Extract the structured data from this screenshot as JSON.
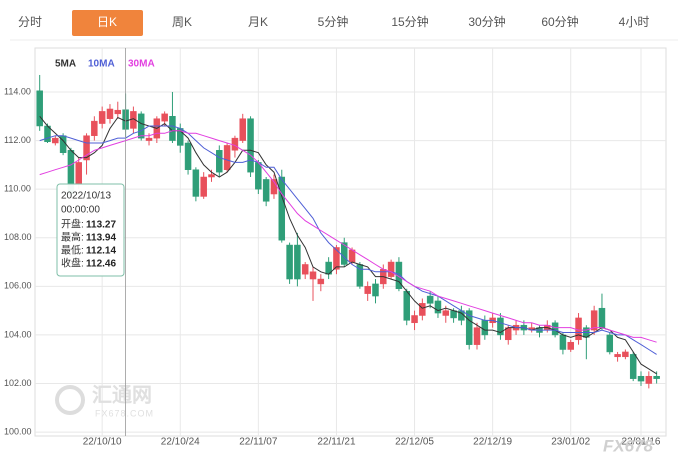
{
  "tabs": [
    "分时",
    "日K",
    "周K",
    "月K",
    "5分钟",
    "15分钟",
    "30分钟",
    "60分钟",
    "4小时"
  ],
  "active_tab": "日K",
  "chart_data": {
    "type": "candlestick",
    "up_color": "#e8505b",
    "down_color": "#2f9e78",
    "ylim": [
      99.84,
      115.81
    ],
    "yticks": [
      {
        "value": 100,
        "label": "100.00"
      },
      {
        "value": 102,
        "label": "102.00"
      },
      {
        "value": 104,
        "label": "104.00"
      },
      {
        "value": 106,
        "label": "106.00"
      },
      {
        "value": 108,
        "label": "108.00"
      },
      {
        "value": 110,
        "label": "110.00"
      },
      {
        "value": 112,
        "label": "112.00"
      },
      {
        "value": 114,
        "label": "114.00"
      }
    ],
    "xlim": [
      -0.6,
      80.2
    ],
    "xticks": [
      {
        "value": 8,
        "label": "22/10/10"
      },
      {
        "value": 18,
        "label": "22/10/24"
      },
      {
        "value": 28,
        "label": "22/11/07"
      },
      {
        "value": 38,
        "label": "22/11/21"
      },
      {
        "value": 48,
        "label": "22/12/05"
      },
      {
        "value": 58,
        "label": "22/12/19"
      },
      {
        "value": 68,
        "label": "23/01/02"
      },
      {
        "value": 77,
        "label": "23/01/16"
      }
    ],
    "grid": true,
    "open": [
      114.05,
      112.6,
      111.9,
      112.2,
      111.6,
      110.2,
      111.2,
      112.2,
      112.7,
      112.9,
      113.1,
      113.27,
      112.5,
      113.1,
      112.0,
      112.1,
      112.8,
      113.0,
      112.5,
      111.9,
      110.8,
      109.7,
      110.5,
      111.6,
      110.8,
      111.6,
      112.0,
      112.9,
      111.1,
      110.4,
      109.8,
      110.5,
      107.7,
      107.7,
      106.5,
      106.3,
      106.1,
      107.0,
      106.7,
      107.8,
      107.0,
      106.9,
      105.7,
      106.1,
      106.1,
      106.4,
      107.0,
      105.8,
      104.5,
      104.8,
      105.6,
      105.4,
      104.8,
      105.0,
      105.0,
      105.0,
      103.6,
      104.6,
      104.5,
      104.7,
      103.8,
      104.2,
      104.4,
      104.2,
      104.3,
      104.2,
      104.5,
      104.0,
      103.4,
      103.8,
      104.3,
      104.2,
      105.1,
      104.0,
      103.1,
      103.1,
      103.2,
      102.3,
      102.0,
      102.3
    ],
    "high": [
      114.7,
      112.7,
      112.2,
      112.3,
      111.7,
      111.3,
      112.3,
      113.0,
      113.4,
      113.5,
      113.6,
      113.94,
      113.4,
      113.2,
      112.3,
      113.0,
      113.2,
      114.0,
      112.7,
      112.0,
      110.9,
      110.7,
      110.8,
      111.8,
      111.9,
      112.2,
      113.1,
      113.0,
      111.2,
      110.5,
      110.6,
      110.8,
      107.8,
      108.2,
      107.0,
      106.8,
      106.5,
      107.2,
      107.7,
      108.0,
      107.6,
      107.0,
      106.2,
      106.3,
      106.9,
      107.1,
      107.2,
      105.9,
      105.0,
      105.5,
      105.8,
      105.6,
      105.2,
      105.1,
      105.2,
      105.1,
      104.5,
      104.8,
      104.9,
      104.9,
      104.4,
      104.6,
      104.6,
      104.5,
      104.4,
      104.6,
      104.6,
      104.1,
      103.8,
      104.9,
      104.4,
      105.2,
      105.7,
      104.1,
      103.3,
      103.4,
      103.3,
      102.5,
      102.5,
      102.5
    ],
    "low": [
      112.4,
      111.9,
      111.8,
      111.4,
      109.7,
      110.0,
      110.6,
      112.0,
      112.5,
      112.7,
      112.9,
      112.14,
      112.3,
      112.0,
      111.8,
      111.9,
      112.6,
      111.9,
      111.5,
      110.6,
      109.5,
      109.6,
      110.3,
      110.5,
      110.7,
      111.3,
      111.9,
      110.5,
      109.8,
      109.3,
      109.6,
      107.8,
      106.1,
      106.0,
      106.3,
      105.4,
      105.8,
      106.3,
      106.5,
      106.8,
      106.9,
      105.9,
      105.4,
      105.3,
      105.9,
      106.3,
      105.8,
      104.4,
      104.2,
      104.6,
      105.1,
      104.7,
      104.5,
      104.5,
      104.4,
      103.4,
      103.4,
      103.8,
      104.3,
      103.8,
      103.6,
      104.0,
      104.0,
      104.1,
      103.9,
      104.1,
      103.9,
      103.2,
      103.3,
      103.6,
      103.0,
      104.0,
      104.2,
      103.2,
      102.9,
      103.0,
      102.1,
      101.9,
      101.8,
      102.0
    ],
    "close": [
      112.6,
      111.95,
      112.1,
      111.5,
      109.8,
      111.1,
      112.2,
      112.8,
      113.2,
      113.3,
      113.25,
      112.46,
      113.2,
      112.1,
      112.1,
      112.9,
      113.1,
      112.0,
      111.8,
      110.8,
      109.7,
      110.5,
      110.6,
      110.7,
      111.8,
      112.1,
      112.9,
      110.7,
      110.0,
      109.5,
      110.4,
      107.9,
      106.3,
      106.3,
      106.9,
      106.6,
      106.3,
      106.5,
      107.6,
      106.9,
      107.5,
      106.0,
      106.0,
      105.6,
      106.7,
      107.0,
      105.9,
      104.6,
      104.8,
      105.3,
      105.3,
      104.9,
      105.0,
      104.7,
      104.6,
      103.6,
      104.3,
      104.0,
      104.7,
      104.0,
      104.3,
      104.4,
      104.2,
      104.3,
      104.1,
      104.4,
      104.0,
      103.4,
      103.7,
      104.7,
      103.9,
      105.0,
      104.3,
      103.3,
      103.2,
      103.3,
      102.2,
      102.1,
      102.3,
      102.2
    ],
    "series": [
      {
        "name": "5MA",
        "color": "#333333",
        "values": [
          113.0,
          112.6,
          112.3,
          112.0,
          111.6,
          111.3,
          111.3,
          111.5,
          111.8,
          112.5,
          112.95,
          112.8,
          112.9,
          112.7,
          112.6,
          112.5,
          112.7,
          112.4,
          112.4,
          112.1,
          111.5,
          111.0,
          110.7,
          110.5,
          110.7,
          111.1,
          111.6,
          111.6,
          111.5,
          111.0,
          110.7,
          109.7,
          108.8,
          108.1,
          107.6,
          106.8,
          106.6,
          106.5,
          106.8,
          106.8,
          107.0,
          106.9,
          106.8,
          106.4,
          106.4,
          106.3,
          106.2,
          105.8,
          105.4,
          105.1,
          105.2,
          105.0,
          105.1,
          105.0,
          104.9,
          104.6,
          104.4,
          104.2,
          104.2,
          104.1,
          104.3,
          104.3,
          104.3,
          104.2,
          104.3,
          104.3,
          104.2,
          104.0,
          103.9,
          104.0,
          103.9,
          104.1,
          104.3,
          104.2,
          103.9,
          103.8,
          103.3,
          102.8,
          102.6,
          102.4
        ]
      },
      {
        "name": "10MA",
        "color": "#4f5fd6",
        "values": [
          112.0,
          112.1,
          112.2,
          112.2,
          112.1,
          112.0,
          111.9,
          111.9,
          111.9,
          112.0,
          112.1,
          112.1,
          112.3,
          112.4,
          112.6,
          112.6,
          112.6,
          112.6,
          112.5,
          112.3,
          112.0,
          111.7,
          111.5,
          111.3,
          111.2,
          111.1,
          111.1,
          111.2,
          111.1,
          110.9,
          110.9,
          110.4,
          110.0,
          109.6,
          109.2,
          108.8,
          108.2,
          107.8,
          107.5,
          107.2,
          106.9,
          106.7,
          106.7,
          106.6,
          106.6,
          106.6,
          106.5,
          106.2,
          106.0,
          105.8,
          105.7,
          105.6,
          105.4,
          105.2,
          105.0,
          104.8,
          104.7,
          104.6,
          104.6,
          104.5,
          104.4,
          104.3,
          104.3,
          104.2,
          104.2,
          104.2,
          104.2,
          104.1,
          104.1,
          104.1,
          104.1,
          104.1,
          104.2,
          104.1,
          104.0,
          104.0,
          103.8,
          103.6,
          103.4,
          103.2
        ]
      },
      {
        "name": "30MA",
        "color": "#e23fe0",
        "values": [
          110.6,
          110.7,
          110.8,
          110.9,
          111.0,
          111.2,
          111.4,
          111.6,
          111.7,
          111.8,
          111.9,
          112.0,
          112.1,
          112.2,
          112.2,
          112.3,
          112.3,
          112.4,
          112.4,
          112.3,
          112.3,
          112.2,
          112.1,
          112.0,
          111.9,
          111.8,
          111.6,
          111.4,
          111.1,
          110.7,
          110.3,
          109.8,
          109.4,
          109.0,
          108.7,
          108.5,
          108.3,
          108.1,
          107.9,
          107.7,
          107.5,
          107.3,
          107.1,
          106.9,
          106.7,
          106.6,
          106.4,
          106.2,
          106.0,
          105.9,
          105.8,
          105.6,
          105.5,
          105.4,
          105.3,
          105.2,
          105.1,
          105.0,
          104.9,
          104.8,
          104.7,
          104.6,
          104.5,
          104.5,
          104.4,
          104.4,
          104.3,
          104.3,
          104.3,
          104.2,
          104.2,
          104.3,
          104.3,
          104.2,
          104.1,
          104.0,
          103.9,
          103.9,
          103.8,
          103.7
        ]
      }
    ],
    "tooltip": {
      "date": "2022/10/13",
      "time": "00:00:00",
      "rows": [
        {
          "label": "开盘:",
          "value": 113.27
        },
        {
          "label": "最高:",
          "value": 113.94
        },
        {
          "label": "最低:",
          "value": 112.14
        },
        {
          "label": "收盘:",
          "value": 112.46
        }
      ]
    },
    "watermark": {
      "logo": "汇通网",
      "site": "FX678.COM",
      "brand": "FX678"
    }
  }
}
